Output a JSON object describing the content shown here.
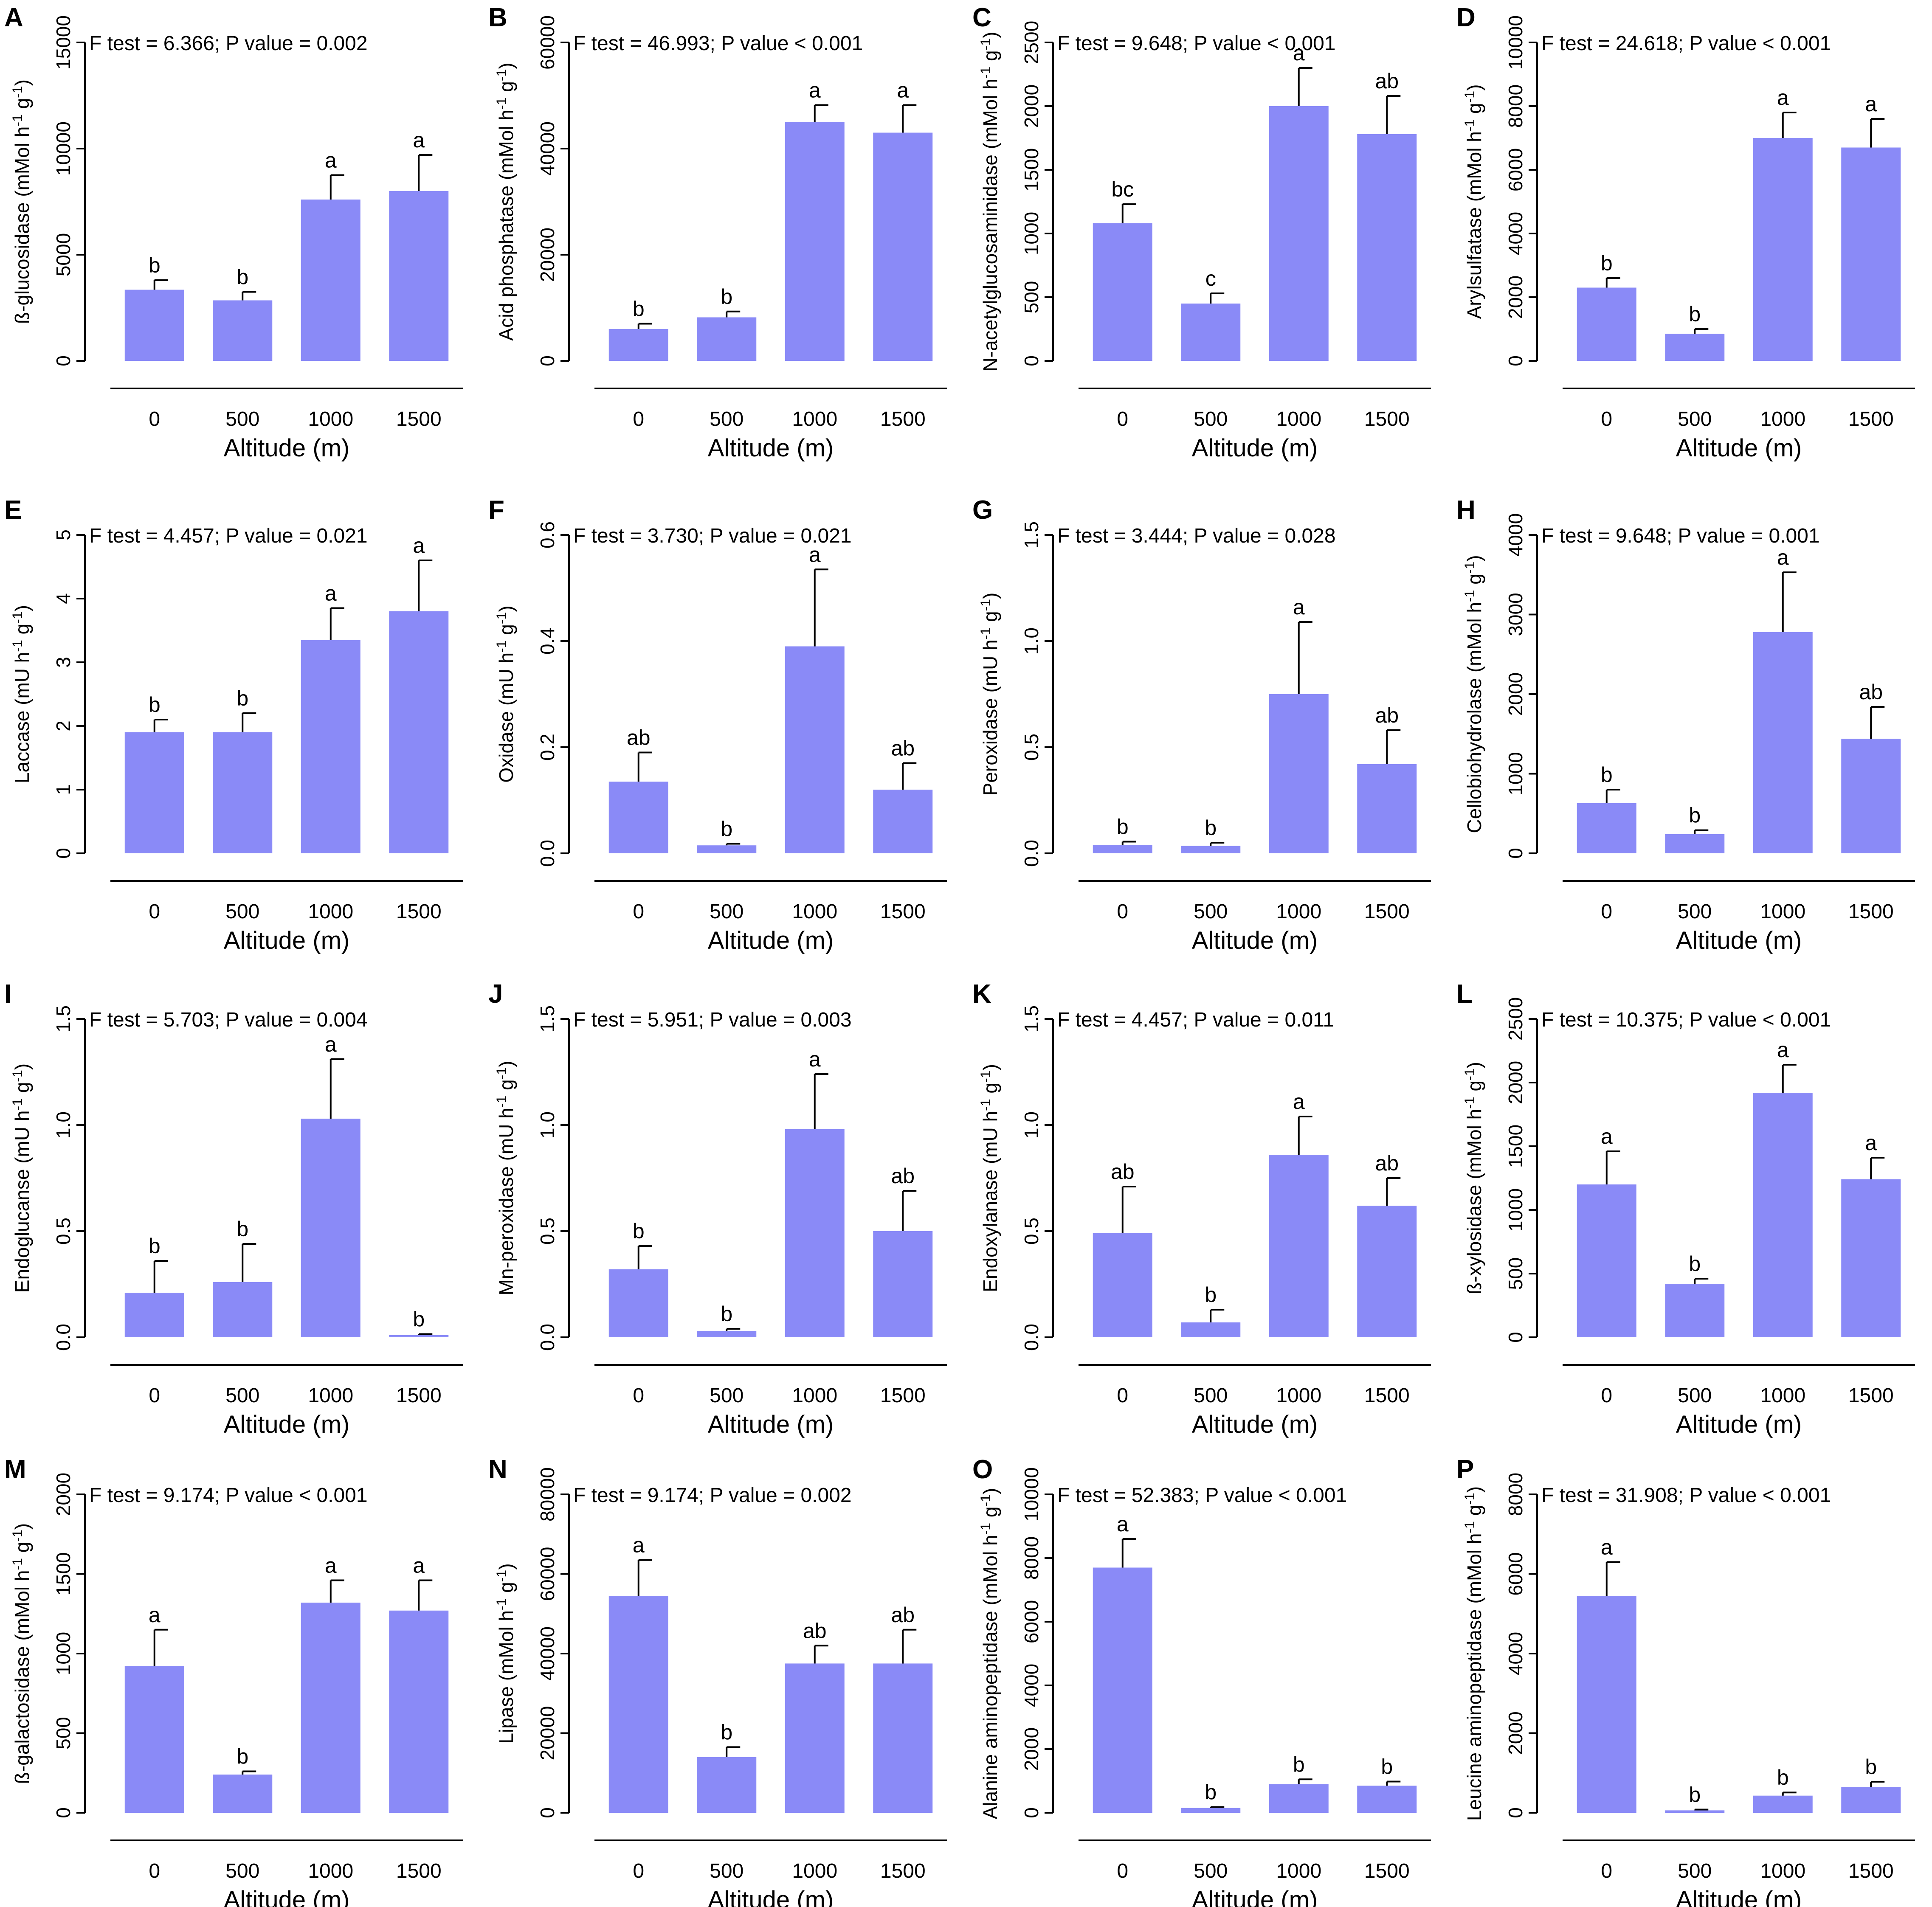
{
  "colors": {
    "bar": "#8a8af7",
    "axis": "#000000",
    "text": "#000000"
  },
  "chart_data": [
    {
      "panel": "A",
      "type": "bar",
      "stat_text": "F test = 6.366; P value = 0.002",
      "ylabel": "ß-glucosidase (mMol h-1 g-1)",
      "ylabel_main": "ß-glucosidase (mMol h",
      "ylabel_mid": " g",
      "ylabel_end": ")",
      "ylabel_sup1": "-1",
      "ylabel_sup2": "-1",
      "xlabel": "Altitude (m)",
      "categories": [
        "0",
        "500",
        "1000",
        "1500"
      ],
      "values": [
        3350,
        2850,
        7600,
        8000
      ],
      "errors": [
        450,
        400,
        1150,
        1700
      ],
      "letters": [
        "b",
        "b",
        "a",
        "a"
      ],
      "ylim": [
        0,
        15000
      ],
      "yticks": [
        0,
        5000,
        10000,
        15000
      ],
      "ytick_labels": [
        "0",
        "5000",
        "10000",
        "15000"
      ]
    },
    {
      "panel": "B",
      "type": "bar",
      "stat_text": "F test = 46.993; P value < 0.001",
      "ylabel": "Acid phosphatase (mMol h-1 g-1)",
      "ylabel_main": "Acid phosphatase (mMol h",
      "ylabel_mid": " g",
      "ylabel_end": ")",
      "ylabel_sup1": "-1",
      "ylabel_sup2": "-1",
      "xlabel": "Altitude (m)",
      "categories": [
        "0",
        "500",
        "1000",
        "1500"
      ],
      "values": [
        6000,
        8200,
        45000,
        43000
      ],
      "errors": [
        1000,
        1100,
        3200,
        5200
      ],
      "letters": [
        "b",
        "b",
        "a",
        "a"
      ],
      "ylim": [
        0,
        60000
      ],
      "yticks": [
        0,
        20000,
        40000,
        60000
      ],
      "ytick_labels": [
        "0",
        "20000",
        "40000",
        "60000"
      ]
    },
    {
      "panel": "C",
      "type": "bar",
      "stat_text": "F test = 9.648; P value < 0.001",
      "ylabel": "N-acetylglucosaminidase (mMol h-1 g-1)",
      "ylabel_main": "N-acetylglucosaminidase (mMol h",
      "ylabel_mid": " g",
      "ylabel_end": ")",
      "ylabel_sup1": "-1",
      "ylabel_sup2": "-1",
      "xlabel": "Altitude (m)",
      "categories": [
        "0",
        "500",
        "1000",
        "1500"
      ],
      "values": [
        1080,
        450,
        2000,
        1780
      ],
      "errors": [
        150,
        80,
        300,
        300
      ],
      "letters": [
        "bc",
        "c",
        "a",
        "ab"
      ],
      "ylim": [
        0,
        2500
      ],
      "yticks": [
        0,
        500,
        1000,
        1500,
        2000,
        2500
      ],
      "ytick_labels": [
        "0",
        "500",
        "1000",
        "1500",
        "2000",
        "2500"
      ]
    },
    {
      "panel": "D",
      "type": "bar",
      "stat_text": "F test = 24.618; P value < 0.001",
      "ylabel": "Arylsulfatase (mMol h-1 g-1)",
      "ylabel_main": "Arylsulfatase (mMol h",
      "ylabel_mid": " g",
      "ylabel_end": ")",
      "ylabel_sup1": "-1",
      "ylabel_sup2": "-1",
      "xlabel": "Altitude (m)",
      "categories": [
        "0",
        "500",
        "1000",
        "1500"
      ],
      "values": [
        2300,
        850,
        7000,
        6700
      ],
      "errors": [
        300,
        150,
        800,
        900
      ],
      "letters": [
        "b",
        "b",
        "a",
        "a"
      ],
      "ylim": [
        0,
        10000
      ],
      "yticks": [
        0,
        2000,
        4000,
        6000,
        8000,
        10000
      ],
      "ytick_labels": [
        "0",
        "2000",
        "4000",
        "6000",
        "8000",
        "10000"
      ]
    },
    {
      "panel": "E",
      "type": "bar",
      "stat_text": "F test = 4.457; P value = 0.021",
      "ylabel": "Laccase (mU h-1 g-1)",
      "ylabel_main": "Laccase (mU h",
      "ylabel_mid": " g",
      "ylabel_end": ")",
      "ylabel_sup1": "-1",
      "ylabel_sup2": "-1",
      "xlabel": "Altitude (m)",
      "categories": [
        "0",
        "500",
        "1000",
        "1500"
      ],
      "values": [
        1.9,
        1.9,
        3.35,
        3.8
      ],
      "errors": [
        0.2,
        0.3,
        0.5,
        0.8
      ],
      "letters": [
        "b",
        "b",
        "a",
        "a"
      ],
      "ylim": [
        0,
        5
      ],
      "yticks": [
        0,
        1,
        2,
        3,
        4,
        5
      ],
      "ytick_labels": [
        "0",
        "1",
        "2",
        "3",
        "4",
        "5"
      ]
    },
    {
      "panel": "F",
      "type": "bar",
      "stat_text": "F test = 3.730; P value = 0.021",
      "ylabel": "Oxidase (mU h-1 g-1)",
      "ylabel_main": "Oxidase (mU h",
      "ylabel_mid": " g",
      "ylabel_end": ")",
      "ylabel_sup1": "-1",
      "ylabel_sup2": "-1",
      "xlabel": "Altitude (m)",
      "categories": [
        "0",
        "500",
        "1000",
        "1500"
      ],
      "values": [
        0.135,
        0.015,
        0.39,
        0.12
      ],
      "errors": [
        0.055,
        0.003,
        0.145,
        0.05
      ],
      "letters": [
        "ab",
        "b",
        "a",
        "ab"
      ],
      "ylim": [
        0,
        0.6
      ],
      "yticks": [
        0,
        0.2,
        0.4,
        0.6
      ],
      "ytick_labels": [
        "0.0",
        "0.2",
        "0.4",
        "0.6"
      ]
    },
    {
      "panel": "G",
      "type": "bar",
      "stat_text": "F test = 3.444; P value = 0.028",
      "ylabel": "Peroxidase (mU h-1 g-1)",
      "ylabel_main": "Peroxidase (mU h",
      "ylabel_mid": " g",
      "ylabel_end": ")",
      "ylabel_sup1": "-1",
      "ylabel_sup2": "-1",
      "xlabel": "Altitude (m)",
      "categories": [
        "0",
        "500",
        "1000",
        "1500"
      ],
      "values": [
        0.04,
        0.035,
        0.75,
        0.42
      ],
      "errors": [
        0.015,
        0.015,
        0.34,
        0.16
      ],
      "letters": [
        "b",
        "b",
        "a",
        "ab"
      ],
      "ylim": [
        0,
        1.5
      ],
      "yticks": [
        0,
        0.5,
        1.0,
        1.5
      ],
      "ytick_labels": [
        "0.0",
        "0.5",
        "1.0",
        "1.5"
      ]
    },
    {
      "panel": "H",
      "type": "bar",
      "stat_text": "F test = 9.648; P value = 0.001",
      "ylabel": "Cellobiohydrolase (mMol h-1 g-1)",
      "ylabel_main": "Cellobiohydrolase (mMol h",
      "ylabel_mid": " g",
      "ylabel_end": ")",
      "ylabel_sup1": "-1",
      "ylabel_sup2": "-1",
      "xlabel": "Altitude (m)",
      "categories": [
        "0",
        "500",
        "1000",
        "1500"
      ],
      "values": [
        630,
        240,
        2780,
        1440
      ],
      "errors": [
        170,
        50,
        750,
        400
      ],
      "letters": [
        "b",
        "b",
        "a",
        "ab"
      ],
      "ylim": [
        0,
        4000
      ],
      "yticks": [
        0,
        1000,
        2000,
        3000,
        4000
      ],
      "ytick_labels": [
        "0",
        "1000",
        "2000",
        "3000",
        "4000"
      ]
    },
    {
      "panel": "I",
      "type": "bar",
      "stat_text": "F test = 5.703; P value = 0.004",
      "ylabel": "Endoglucanse (mU h-1 g-1)",
      "ylabel_main": "Endoglucanse (mU h",
      "ylabel_mid": " g",
      "ylabel_end": ")",
      "ylabel_sup1": "-1",
      "ylabel_sup2": "-1",
      "xlabel": "Altitude (m)",
      "categories": [
        "0",
        "500",
        "1000",
        "1500"
      ],
      "values": [
        0.21,
        0.26,
        1.03,
        0.01
      ],
      "errors": [
        0.15,
        0.18,
        0.28,
        0.005
      ],
      "letters": [
        "b",
        "b",
        "a",
        "b"
      ],
      "ylim": [
        0,
        1.5
      ],
      "yticks": [
        0,
        0.5,
        1.0,
        1.5
      ],
      "ytick_labels": [
        "0.0",
        "0.5",
        "1.0",
        "1.5"
      ]
    },
    {
      "panel": "J",
      "type": "bar",
      "stat_text": "F test = 5.951; P value = 0.003",
      "ylabel": "Mn-peroxidase (mU h-1 g-1)",
      "ylabel_main": "Mn-peroxidase (mU h",
      "ylabel_mid": " g",
      "ylabel_end": ")",
      "ylabel_sup1": "-1",
      "ylabel_sup2": "-1",
      "xlabel": "Altitude (m)",
      "categories": [
        "0",
        "500",
        "1000",
        "1500"
      ],
      "values": [
        0.32,
        0.03,
        0.98,
        0.5
      ],
      "errors": [
        0.11,
        0.01,
        0.26,
        0.19
      ],
      "letters": [
        "b",
        "b",
        "a",
        "ab"
      ],
      "ylim": [
        0,
        1.5
      ],
      "yticks": [
        0,
        0.5,
        1.0,
        1.5
      ],
      "ytick_labels": [
        "0.0",
        "0.5",
        "1.0",
        "1.5"
      ]
    },
    {
      "panel": "K",
      "type": "bar",
      "stat_text": "F test = 4.457; P value = 0.011",
      "ylabel": "Endoxylanase (mU h-1 g-1)",
      "ylabel_main": "Endoxylanase (mU h",
      "ylabel_mid": " g",
      "ylabel_end": ")",
      "ylabel_sup1": "-1",
      "ylabel_sup2": "-1",
      "xlabel": "Altitude (m)",
      "categories": [
        "0",
        "500",
        "1000",
        "1500"
      ],
      "values": [
        0.49,
        0.07,
        0.86,
        0.62
      ],
      "errors": [
        0.22,
        0.06,
        0.18,
        0.13
      ],
      "letters": [
        "ab",
        "b",
        "a",
        "ab"
      ],
      "ylim": [
        0,
        1.5
      ],
      "yticks": [
        0,
        0.5,
        1.0,
        1.5
      ],
      "ytick_labels": [
        "0.0",
        "0.5",
        "1.0",
        "1.5"
      ]
    },
    {
      "panel": "L",
      "type": "bar",
      "stat_text": "F test = 10.375; P value < 0.001",
      "ylabel": "ß-xylosidase (mMol h-1 g-1)",
      "ylabel_main": "ß-xylosidase (mMol h",
      "ylabel_mid": " g",
      "ylabel_end": ")",
      "ylabel_sup1": "-1",
      "ylabel_sup2": "-1",
      "xlabel": "Altitude (m)",
      "categories": [
        "0",
        "500",
        "1000",
        "1500"
      ],
      "values": [
        1200,
        420,
        1920,
        1240
      ],
      "errors": [
        260,
        40,
        220,
        170
      ],
      "letters": [
        "a",
        "b",
        "a",
        "a"
      ],
      "ylim": [
        0,
        2500
      ],
      "yticks": [
        0,
        500,
        1000,
        1500,
        2000,
        2500
      ],
      "ytick_labels": [
        "0",
        "500",
        "1000",
        "1500",
        "2000",
        "2500"
      ]
    },
    {
      "panel": "M",
      "type": "bar",
      "stat_text": "F test = 9.174; P value < 0.001",
      "ylabel": "ß-galactosidase (mMol h-1 g-1)",
      "ylabel_main": "ß-galactosidase (mMol h",
      "ylabel_mid": " g",
      "ylabel_end": ")",
      "ylabel_sup1": "-1",
      "ylabel_sup2": "-1",
      "xlabel": "Altitude (m)",
      "categories": [
        "0",
        "500",
        "1000",
        "1500"
      ],
      "values": [
        920,
        240,
        1320,
        1270
      ],
      "errors": [
        230,
        20,
        140,
        190
      ],
      "letters": [
        "a",
        "b",
        "a",
        "a"
      ],
      "ylim": [
        0,
        2000
      ],
      "yticks": [
        0,
        500,
        1000,
        1500,
        2000
      ],
      "ytick_labels": [
        "0",
        "500",
        "1000",
        "1500",
        "2000"
      ]
    },
    {
      "panel": "N",
      "type": "bar",
      "stat_text": "F test = 9.174; P value = 0.002",
      "ylabel": "Lipase (mMol h-1 g-1)",
      "ylabel_main": "Lipase (mMol h",
      "ylabel_mid": " g",
      "ylabel_end": ")",
      "ylabel_sup1": "-1",
      "ylabel_sup2": "-1",
      "xlabel": "Altitude (m)",
      "categories": [
        "0",
        "500",
        "1000",
        "1500"
      ],
      "values": [
        54500,
        14000,
        37500,
        37500
      ],
      "errors": [
        9000,
        2500,
        4500,
        8500
      ],
      "letters": [
        "a",
        "b",
        "ab",
        "ab"
      ],
      "ylim": [
        0,
        80000
      ],
      "yticks": [
        0,
        20000,
        40000,
        60000,
        80000
      ],
      "ytick_labels": [
        "0",
        "20000",
        "40000",
        "60000",
        "80000"
      ]
    },
    {
      "panel": "O",
      "type": "bar",
      "stat_text": "F test = 52.383; P value < 0.001",
      "ylabel": "Alanine aminopeptidase (mMol h-1 g-1)",
      "ylabel_main": "Alanine aminopeptidase (mMol h",
      "ylabel_mid": " g",
      "ylabel_end": ")",
      "ylabel_sup1": "-1",
      "ylabel_sup2": "-1",
      "xlabel": "Altitude (m)",
      "categories": [
        "0",
        "500",
        "1000",
        "1500"
      ],
      "values": [
        7700,
        150,
        900,
        850
      ],
      "errors": [
        900,
        30,
        150,
        130
      ],
      "letters": [
        "a",
        "b",
        "b",
        "b"
      ],
      "ylim": [
        0,
        10000
      ],
      "yticks": [
        0,
        2000,
        4000,
        6000,
        8000,
        10000
      ],
      "ytick_labels": [
        "0",
        "2000",
        "4000",
        "6000",
        "8000",
        "10000"
      ]
    },
    {
      "panel": "P",
      "type": "bar",
      "stat_text": "F test = 31.908; P value < 0.001",
      "ylabel": "Leucine aminopeptidase (mMol h-1 g-1)",
      "ylabel_main": "Leucine aminopeptidase (mMol h",
      "ylabel_mid": " g",
      "ylabel_end": ")",
      "ylabel_sup1": "-1",
      "ylabel_sup2": "-1",
      "xlabel": "Altitude (m)",
      "categories": [
        "0",
        "500",
        "1000",
        "1500"
      ],
      "values": [
        5450,
        60,
        430,
        650
      ],
      "errors": [
        850,
        20,
        80,
        130
      ],
      "letters": [
        "a",
        "b",
        "b",
        "b"
      ],
      "ylim": [
        0,
        8000
      ],
      "yticks": [
        0,
        2000,
        4000,
        6000,
        8000
      ],
      "ytick_labels": [
        "0",
        "2000",
        "4000",
        "6000",
        "8000"
      ]
    }
  ]
}
